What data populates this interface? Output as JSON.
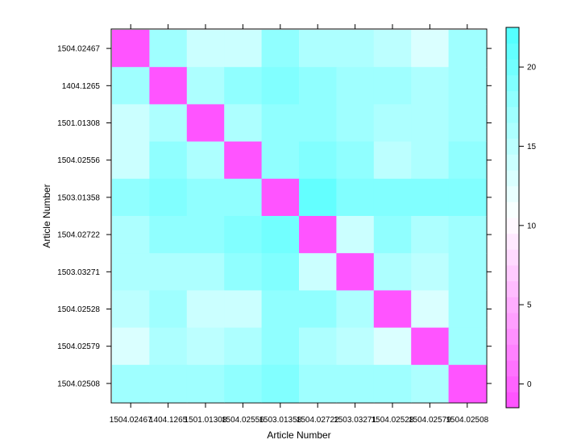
{
  "chart_data": {
    "type": "heatmap",
    "xlabel": "Article Number",
    "ylabel": "Article Number",
    "x_categories": [
      "1504.02467",
      "1404.1265",
      "1501.01308",
      "1504.02556",
      "1503.01358",
      "1504.02722",
      "1503.03271",
      "1504.02528",
      "1504.02579",
      "1504.02508"
    ],
    "y_categories": [
      "1504.02467",
      "1404.1265",
      "1501.01308",
      "1504.02556",
      "1503.01358",
      "1504.02722",
      "1503.03271",
      "1504.02528",
      "1504.02579",
      "1504.02508"
    ],
    "values": [
      [
        -1,
        17,
        14,
        14,
        18,
        16,
        16,
        15,
        13,
        17
      ],
      [
        17,
        -1,
        16,
        18,
        19,
        18,
        17,
        17,
        16,
        17
      ],
      [
        14,
        16,
        -1,
        16,
        18,
        18,
        17,
        16,
        16,
        17
      ],
      [
        14,
        18,
        16,
        -1,
        18,
        19,
        18,
        15,
        16,
        18
      ],
      [
        18,
        19,
        18,
        18,
        -1,
        21,
        19,
        19,
        19,
        19
      ],
      [
        16,
        18,
        18,
        19,
        20,
        -1,
        14,
        18,
        16,
        17
      ],
      [
        16,
        16,
        16,
        18,
        19,
        14,
        -1,
        16,
        15,
        17
      ],
      [
        15,
        17,
        14,
        14,
        18,
        18,
        16,
        -1,
        13,
        17
      ],
      [
        13,
        16,
        15,
        16,
        18,
        16,
        15,
        13,
        -1,
        17
      ],
      [
        17,
        17,
        17,
        18,
        19,
        17,
        17,
        17,
        16,
        -1
      ]
    ],
    "colorbar": {
      "min": -1.5,
      "max": 22.5,
      "step": 1,
      "ticks": [
        0,
        5,
        10,
        15,
        20
      ],
      "low_color": "#ff4dff",
      "high_color": "#4dffff"
    }
  }
}
